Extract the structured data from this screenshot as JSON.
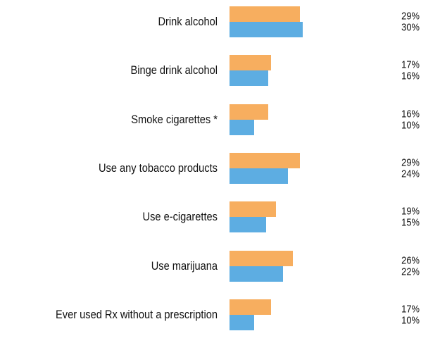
{
  "chart_data": {
    "type": "bar",
    "orientation": "horizontal",
    "categories": [
      "Drink alcohol",
      "Binge drink alcohol",
      "Smoke cigarettes *",
      "Use any tobacco products",
      "Use e-cigarettes",
      "Use marijuana",
      "Ever used Rx without a prescription"
    ],
    "series": [
      {
        "color": "#F7AE5F",
        "values": [
          29,
          17,
          16,
          29,
          19,
          26,
          17
        ],
        "labels": [
          "29%",
          "17%",
          "16%",
          "29%",
          "19%",
          "26%",
          "17%"
        ]
      },
      {
        "color": "#5DADE2",
        "values": [
          30,
          16,
          10,
          24,
          15,
          22,
          10
        ],
        "labels": [
          "30%",
          "16%",
          "10%",
          "24%",
          "15%",
          "22%",
          "10%"
        ]
      }
    ],
    "value_unit": "%",
    "grid": false,
    "legend": "none"
  }
}
